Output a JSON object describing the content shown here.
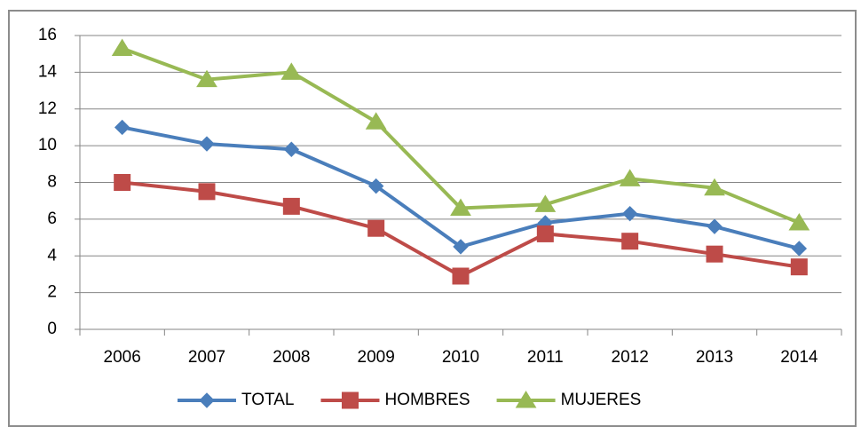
{
  "chart_data": {
    "type": "line",
    "categories": [
      "2006",
      "2007",
      "2008",
      "2009",
      "2010",
      "2011",
      "2012",
      "2013",
      "2014"
    ],
    "series": [
      {
        "name": "TOTAL",
        "color": "#4a7ebb",
        "marker": "diamond",
        "values": [
          11.0,
          10.1,
          9.8,
          7.8,
          4.5,
          5.8,
          6.3,
          5.6,
          4.4
        ]
      },
      {
        "name": "HOMBRES",
        "color": "#be4b48",
        "marker": "square",
        "values": [
          8.0,
          7.5,
          6.7,
          5.5,
          2.9,
          5.2,
          4.8,
          4.1,
          3.4
        ]
      },
      {
        "name": "MUJERES",
        "color": "#98b954",
        "marker": "triangle",
        "values": [
          15.3,
          13.6,
          14.0,
          11.3,
          6.6,
          6.8,
          8.2,
          7.7,
          5.8
        ]
      }
    ],
    "ylim": [
      0,
      16
    ],
    "yticks": [
      0,
      2,
      4,
      6,
      8,
      10,
      12,
      14,
      16
    ],
    "grid": true,
    "legend": "bottom"
  }
}
